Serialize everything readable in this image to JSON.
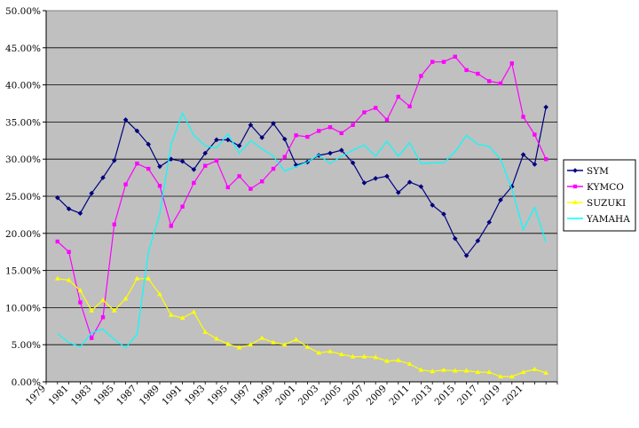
{
  "chart_data": {
    "type": "line",
    "title": "",
    "xlabel": "",
    "ylabel": "",
    "ylim": [
      0,
      50
    ],
    "y_ticks": [
      "0.00%",
      "5.00%",
      "10.00%",
      "15.00%",
      "20.00%",
      "25.00%",
      "30.00%",
      "35.00%",
      "40.00%",
      "45.00%",
      "50.00%"
    ],
    "x_tick_labels": [
      "1979",
      "1981",
      "1983",
      "1985",
      "1987",
      "1989",
      "1991",
      "1993",
      "1995",
      "1997",
      "1999",
      "2001",
      "2003",
      "2005",
      "2007",
      "2009",
      "2011",
      "2013",
      "2015",
      "2017",
      "2019",
      "2021"
    ],
    "plot_background": "#C0C0C0",
    "grid": true,
    "legend_position": "right",
    "x": [
      1980,
      1981,
      1982,
      1983,
      1984,
      1985,
      1986,
      1987,
      1988,
      1989,
      1990,
      1991,
      1992,
      1993,
      1994,
      1995,
      1996,
      1997,
      1998,
      1999,
      2000,
      2001,
      2002,
      2003,
      2004,
      2005,
      2006,
      2007,
      2008,
      2009,
      2010,
      2011,
      2012,
      2013,
      2014,
      2015,
      2016,
      2017,
      2018,
      2019,
      2020,
      2021,
      2022,
      2023
    ],
    "series": [
      {
        "name": "SYM",
        "color": "#000080",
        "marker": "diamond",
        "values": [
          24.8,
          23.3,
          22.7,
          25.4,
          27.5,
          29.8,
          35.3,
          33.8,
          32.0,
          29.0,
          30.0,
          29.7,
          28.6,
          30.8,
          32.6,
          32.6,
          31.8,
          34.6,
          32.9,
          34.8,
          32.7,
          29.2,
          29.6,
          30.5,
          30.8,
          31.2,
          29.5,
          26.8,
          27.4,
          27.7,
          25.5,
          26.9,
          26.3,
          23.8,
          22.6,
          19.3,
          17.0,
          19.0,
          21.5,
          24.5,
          26.3,
          30.6,
          29.3,
          37.0
        ]
      },
      {
        "name": "KYMCO",
        "color": "#FF00FF",
        "marker": "square",
        "values": [
          18.9,
          17.5,
          10.7,
          5.9,
          8.7,
          21.2,
          26.6,
          29.4,
          28.7,
          26.4,
          21.0,
          23.6,
          26.8,
          29.1,
          29.8,
          26.2,
          27.7,
          26.0,
          27.0,
          28.7,
          30.3,
          33.2,
          33.0,
          33.8,
          34.3,
          33.5,
          34.6,
          36.3,
          36.9,
          35.3,
          38.4,
          37.1,
          41.2,
          43.1,
          43.1,
          43.8,
          42.0,
          41.5,
          40.5,
          40.2,
          42.9,
          35.7,
          33.3,
          30.0
        ]
      },
      {
        "name": "SUZUKI",
        "color": "#FFFF00",
        "marker": "triangle",
        "values": [
          13.9,
          13.7,
          12.3,
          9.6,
          11.0,
          9.6,
          11.2,
          13.9,
          13.9,
          11.8,
          9.0,
          8.6,
          9.4,
          6.7,
          5.8,
          5.1,
          4.6,
          5.0,
          5.9,
          5.3,
          5.0,
          5.7,
          4.7,
          3.9,
          4.1,
          3.7,
          3.4,
          3.4,
          3.3,
          2.8,
          2.9,
          2.4,
          1.6,
          1.4,
          1.6,
          1.5,
          1.5,
          1.3,
          1.3,
          0.7,
          0.7,
          1.3,
          1.7,
          1.2
        ]
      },
      {
        "name": "YAMAHA",
        "color": "#00FFFF",
        "marker": "none",
        "values": [
          6.5,
          5.3,
          4.7,
          6.6,
          7.1,
          5.7,
          4.6,
          6.4,
          17.5,
          22.6,
          32.0,
          36.2,
          33.2,
          31.8,
          31.5,
          33.4,
          30.8,
          32.5,
          31.4,
          30.4,
          28.4,
          29.0,
          29.6,
          30.6,
          29.4,
          30.4,
          31.2,
          31.9,
          30.4,
          32.4,
          30.4,
          32.2,
          29.4,
          29.5,
          29.5,
          31.0,
          33.2,
          32.0,
          31.7,
          30.0,
          26.0,
          20.5,
          23.5,
          18.8
        ]
      }
    ]
  }
}
